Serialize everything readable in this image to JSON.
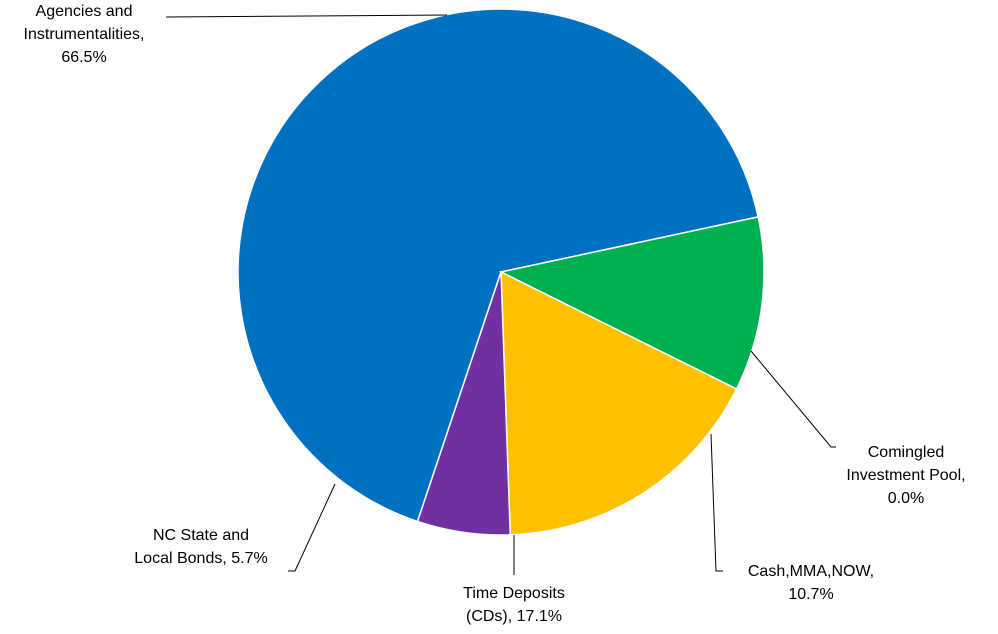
{
  "chart_data": {
    "type": "pie",
    "title": "",
    "slices": [
      {
        "name": "Agencies and Instrumentalities",
        "value": 66.5,
        "color": "#0070C0",
        "label_lines": [
          "Agencies and",
          "Instrumentalities,",
          "66.5%"
        ]
      },
      {
        "name": "Comingled Investment Pool",
        "value": 0.0,
        "color": "#FF0000",
        "label_lines": [
          "Comingled",
          "Investment Pool,",
          "0.0%"
        ]
      },
      {
        "name": "Cash,MMA,NOW",
        "value": 10.7,
        "color": "#00B050",
        "label_lines": [
          "Cash,MMA,NOW,",
          "10.7%"
        ]
      },
      {
        "name": "Time Deposits (CDs)",
        "value": 17.1,
        "color": "#FFC000",
        "label_lines": [
          "Time Deposits",
          "(CDs), 17.1%"
        ]
      },
      {
        "name": "NC State and Local Bonds",
        "value": 5.7,
        "color": "#7030A0",
        "label_lines": [
          "NC State and",
          "Local Bonds, 5.7%"
        ]
      }
    ]
  }
}
